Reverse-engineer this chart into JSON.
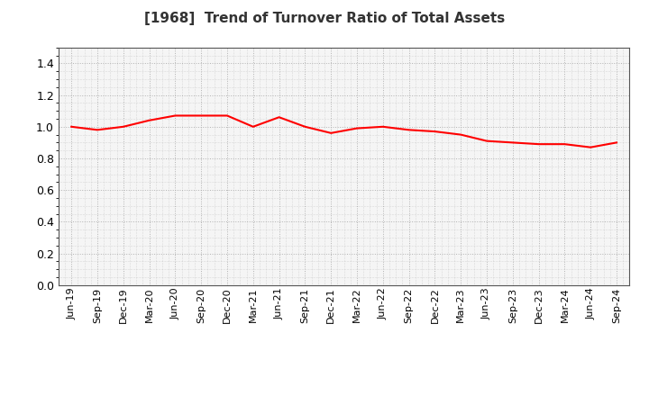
{
  "title": "[1968]  Trend of Turnover Ratio of Total Assets",
  "title_fontsize": 11,
  "line_color": "#FF0000",
  "line_width": 1.5,
  "background_color": "#FFFFFF",
  "plot_bg_color": "#F5F5F5",
  "grid_color": "#AAAAAA",
  "ylim": [
    0.0,
    1.5
  ],
  "yticks": [
    0.0,
    0.2,
    0.4,
    0.6,
    0.8,
    1.0,
    1.2,
    1.4
  ],
  "x_labels": [
    "Jun-19",
    "Sep-19",
    "Dec-19",
    "Mar-20",
    "Jun-20",
    "Sep-20",
    "Dec-20",
    "Mar-21",
    "Jun-21",
    "Sep-21",
    "Dec-21",
    "Mar-22",
    "Jun-22",
    "Sep-22",
    "Dec-22",
    "Mar-23",
    "Jun-23",
    "Sep-23",
    "Dec-23",
    "Mar-24",
    "Jun-24",
    "Sep-24"
  ],
  "values": [
    1.0,
    0.98,
    1.0,
    1.04,
    1.07,
    1.07,
    1.07,
    1.0,
    1.06,
    1.0,
    0.96,
    0.99,
    1.0,
    0.98,
    0.97,
    0.95,
    0.91,
    0.9,
    0.89,
    0.89,
    0.87,
    0.9
  ],
  "tick_fontsize": 8,
  "ytick_fontsize": 9
}
